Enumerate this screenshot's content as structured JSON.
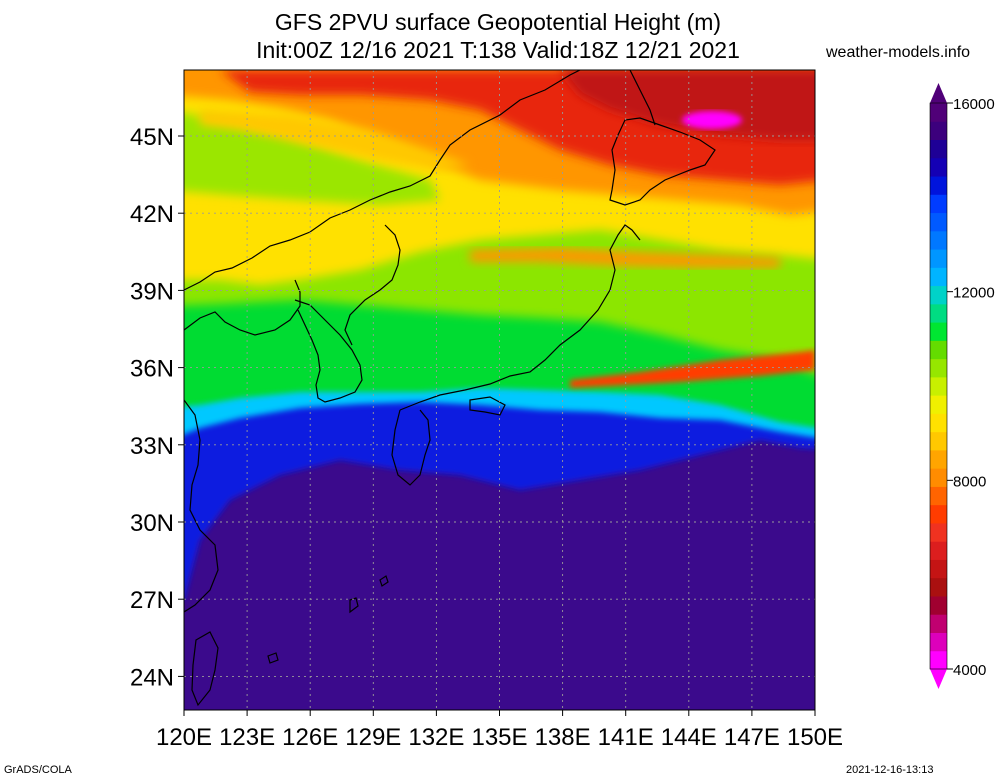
{
  "header": {
    "title_line1": "GFS 2PVU surface Geopotential Height (m)",
    "title_line2": "Init:00Z 12/16 2021 T:138 Valid:18Z 12/21 2021",
    "credit": "weather-models.info"
  },
  "axes": {
    "lat_labels": [
      "45N",
      "42N",
      "39N",
      "36N",
      "33N",
      "30N",
      "27N",
      "24N"
    ],
    "lat_values": [
      45,
      42,
      39,
      36,
      33,
      30,
      27,
      24
    ],
    "lon_labels": [
      "120E",
      "123E",
      "126E",
      "129E",
      "132E",
      "135E",
      "138E",
      "141E",
      "144E",
      "147E",
      "150E"
    ],
    "lon_values": [
      120,
      123,
      126,
      129,
      132,
      135,
      138,
      141,
      144,
      147,
      150
    ]
  },
  "colorbar": {
    "labels": [
      "16000",
      "12000",
      "8000",
      "4000"
    ],
    "label_values": [
      16000,
      12000,
      8000,
      4000
    ],
    "min": 4000,
    "max": 16000,
    "colors": [
      "#ff00ff",
      "#dd00bb",
      "#c00070",
      "#a00030",
      "#aa1010",
      "#c41414",
      "#dc1e1e",
      "#f03220",
      "#ff3c00",
      "#ff6400",
      "#ff8c00",
      "#ffa500",
      "#ffc800",
      "#ffe100",
      "#f0f000",
      "#c8f000",
      "#96e600",
      "#64dc00",
      "#00e632",
      "#00dc82",
      "#00d2c8",
      "#00b4ff",
      "#0096ff",
      "#0078ff",
      "#005aff",
      "#003cff",
      "#0014dc",
      "#1400b4",
      "#1e0096",
      "#3c007d",
      "#500078"
    ]
  },
  "colors": {
    "purple": "#3b0a8c",
    "blue": "#0a1ee0",
    "cyan": "#00c8ff",
    "green": "#00dc32",
    "yellow": "#ffe100",
    "orange": "#ff9600",
    "red": "#e8280a",
    "magenta": "#ff00ff"
  },
  "footer": {
    "left": "GrADS/COLA",
    "right": "2021-12-16-13:13"
  }
}
